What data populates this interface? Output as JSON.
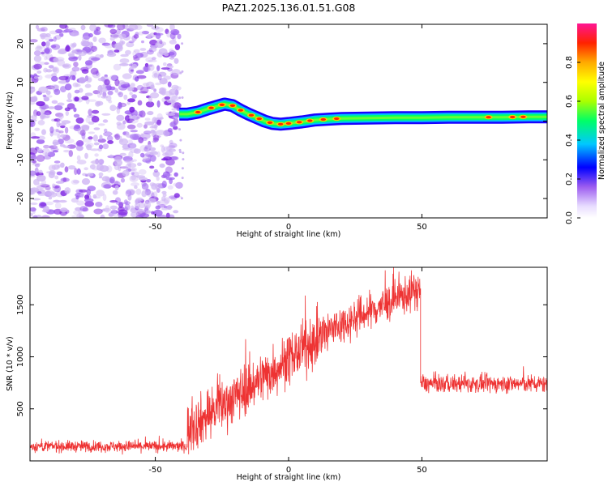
{
  "title": "PAZ1.2025.136.01.51.G08",
  "colors": {
    "snr_line": "#ee3333",
    "low_noise": "#cfb6f4",
    "mid_noise": "#9a5cf0",
    "high_noise": "#7a1ee0"
  },
  "chart_data": [
    {
      "type": "heatmap",
      "xlabel": "Height of straight line (km)",
      "ylabel": "Frequency (Hz)",
      "xlim": [
        -97,
        97
      ],
      "ylim": [
        -25,
        25
      ],
      "x_ticks": [
        "-50",
        "0",
        "50"
      ],
      "x_tick_values": [
        -50,
        0,
        50
      ],
      "y_ticks": [
        "20",
        "10",
        "0",
        "-10",
        "-20"
      ],
      "y_tick_values": [
        20,
        10,
        0,
        -10,
        -20
      ],
      "grid": false,
      "noise_region": {
        "x_range": [
          -97,
          -41
        ],
        "description_level": "scattered low-amplitude speckle"
      },
      "signal_trace": {
        "x": [
          -41,
          -38,
          -34,
          -30,
          -27,
          -24,
          -21,
          -18,
          -15,
          -12,
          -9,
          -6,
          -3,
          0,
          5,
          10,
          15,
          20,
          30,
          40,
          50,
          60,
          70,
          80,
          90,
          97
        ],
        "y": [
          1.8,
          1.8,
          2.3,
          3.2,
          3.8,
          4.4,
          4.0,
          2.8,
          1.8,
          0.9,
          0.0,
          -0.6,
          -0.8,
          -0.6,
          -0.2,
          0.3,
          0.5,
          0.7,
          0.8,
          0.9,
          0.9,
          1.0,
          1.0,
          1.0,
          1.1,
          1.1
        ]
      },
      "hotspots_x": [
        -34,
        -29,
        -25,
        -21,
        -18,
        -14,
        -11,
        -7,
        -3,
        0,
        4,
        8,
        13,
        18,
        75,
        84,
        88
      ]
    },
    {
      "type": "line",
      "xlabel": "Height of straight line (km)",
      "ylabel": "SNR (10 * v/v)",
      "xlim": [
        -97,
        97
      ],
      "ylim": [
        0,
        1860
      ],
      "x_ticks": [
        "-50",
        "0",
        "50"
      ],
      "x_tick_values": [
        -50,
        0,
        50
      ],
      "y_ticks": [
        "500",
        "1000",
        "1500"
      ],
      "y_tick_values": [
        500,
        1000,
        1500
      ],
      "grid": false,
      "segments": [
        {
          "x_range": [
            -97,
            -38
          ],
          "mean": [
            140,
            140
          ],
          "noise": 70
        },
        {
          "x_range": [
            -38,
            17
          ],
          "mean": [
            300,
            1280
          ],
          "noise": 320
        },
        {
          "x_range": [
            17,
            49.5
          ],
          "mean": [
            1280,
            1660
          ],
          "noise": 240
        },
        {
          "x_range": [
            49.5,
            97
          ],
          "mean": [
            740,
            740
          ],
          "noise": 110
        }
      ]
    }
  ],
  "colorbar": {
    "label": "Normalized spectral amplitude",
    "ticks": [
      "0.0",
      "0.2",
      "0.4",
      "0.6",
      "0.8"
    ],
    "tick_values": [
      0.0,
      0.2,
      0.4,
      0.6,
      0.8
    ],
    "range": [
      0.0,
      1.0
    ],
    "stops": [
      "#ffffff",
      "#e8ddff",
      "#7a1ee0",
      "#0000ff",
      "#00c8ff",
      "#00ff66",
      "#aaff00",
      "#ffff00",
      "#ffaa00",
      "#ff2200",
      "#ff1493"
    ]
  }
}
